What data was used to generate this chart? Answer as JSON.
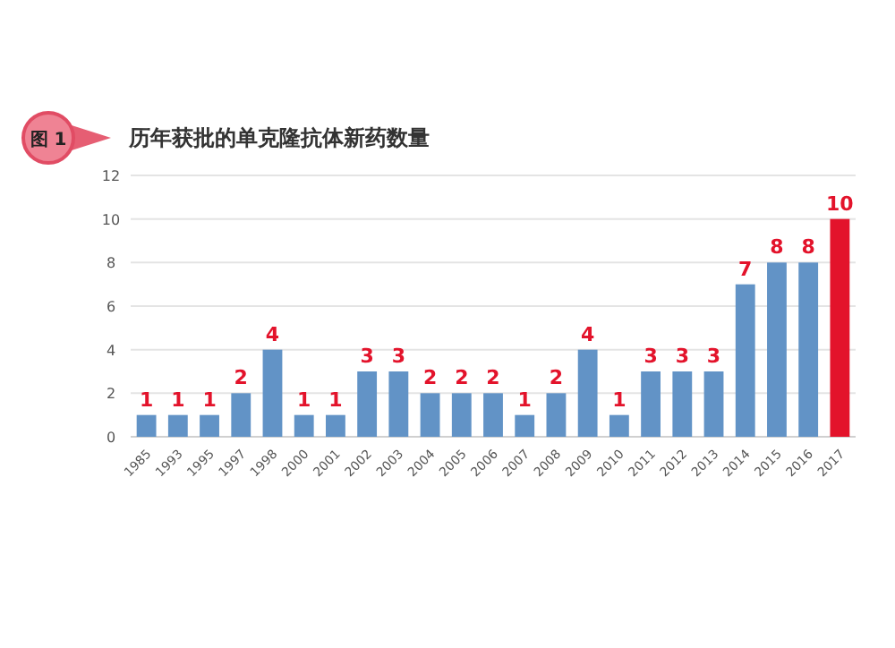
{
  "chart_data": {
    "type": "bar",
    "title": "历年获批的单克隆抗体新药数量",
    "annotations": [
      "图 1"
    ],
    "categories": [
      "1985",
      "1993",
      "1995",
      "1997",
      "1998",
      "2000",
      "2001",
      "2002",
      "2003",
      "2004",
      "2005",
      "2006",
      "2007",
      "2008",
      "2009",
      "2010",
      "2011",
      "2012",
      "2013",
      "2014",
      "2015",
      "2016",
      "2017"
    ],
    "values": [
      1,
      1,
      1,
      2,
      4,
      1,
      1,
      3,
      3,
      2,
      2,
      2,
      1,
      2,
      4,
      1,
      3,
      3,
      3,
      7,
      8,
      8,
      10
    ],
    "colors": [
      "#6293c6",
      "#6293c6",
      "#6293c6",
      "#6293c6",
      "#6293c6",
      "#6293c6",
      "#6293c6",
      "#6293c6",
      "#6293c6",
      "#6293c6",
      "#6293c6",
      "#6293c6",
      "#6293c6",
      "#6293c6",
      "#6293c6",
      "#6293c6",
      "#6293c6",
      "#6293c6",
      "#6293c6",
      "#6293c6",
      "#6293c6",
      "#6293c6",
      "#e3132b"
    ],
    "ylim": [
      0,
      12
    ],
    "yticks": [
      0,
      2,
      4,
      6,
      8,
      10,
      12
    ],
    "grid": "y",
    "data_labels": true
  }
}
